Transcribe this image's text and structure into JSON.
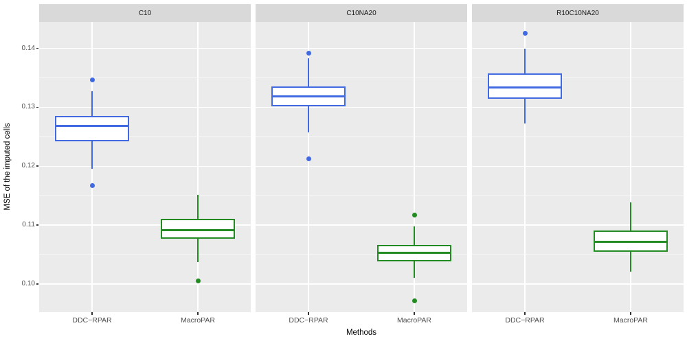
{
  "chart_data": {
    "type": "boxplot",
    "title": "",
    "xlabel": "Methods",
    "ylabel": "MSE of the imputed cells",
    "categories": [
      "DDC−RPAR",
      "MacroPAR"
    ],
    "legend": "none",
    "ylim": [
      0.0952,
      0.1445
    ],
    "yticks": [
      {
        "label": "0.10",
        "value": 0.1
      },
      {
        "label": "0.11",
        "value": 0.11
      },
      {
        "label": "0.12",
        "value": 0.12
      },
      {
        "label": "0.13",
        "value": 0.13
      },
      {
        "label": "0.14",
        "value": 0.14
      }
    ],
    "minor_yticks": [
      0.105,
      0.115,
      0.125,
      0.135
    ],
    "category_positions_pct": [
      25,
      75
    ],
    "box_width_pct": 35,
    "colors": {
      "ddc_rpar": "#4169E1",
      "macropar": "#228B22",
      "panel_bg": "#EBEBEB",
      "strip_bg": "#D9D9D9",
      "gridline": "#FFFFFF",
      "tick_text": "#4D4D4D",
      "axis_text": "#000000"
    },
    "facets": [
      {
        "label": "C10",
        "boxes": [
          {
            "category": "DDC−RPAR",
            "color": "#4169E1",
            "whisker_low": 0.1196,
            "q1": 0.1242,
            "median": 0.1269,
            "q3": 0.1285,
            "whisker_high": 0.1327,
            "outliers": [
              0.1347,
              0.1167
            ]
          },
          {
            "category": "MacroPAR",
            "color": "#228B22",
            "whisker_low": 0.1037,
            "q1": 0.1077,
            "median": 0.1091,
            "q3": 0.111,
            "whisker_high": 0.1151,
            "outliers": [
              0.1005
            ]
          }
        ]
      },
      {
        "label": "C10NA20",
        "boxes": [
          {
            "category": "DDC−RPAR",
            "color": "#4169E1",
            "whisker_low": 0.1257,
            "q1": 0.1302,
            "median": 0.1319,
            "q3": 0.1335,
            "whisker_high": 0.1383,
            "outliers": [
              0.1392,
              0.1213
            ]
          },
          {
            "category": "MacroPAR",
            "color": "#228B22",
            "whisker_low": 0.101,
            "q1": 0.1038,
            "median": 0.1053,
            "q3": 0.1066,
            "whisker_high": 0.1098,
            "outliers": [
              0.1117,
              0.0971
            ]
          }
        ]
      },
      {
        "label": "R10C10NA20",
        "boxes": [
          {
            "category": "DDC−RPAR",
            "color": "#4169E1",
            "whisker_low": 0.1272,
            "q1": 0.1315,
            "median": 0.1334,
            "q3": 0.1358,
            "whisker_high": 0.14,
            "outliers": [
              0.1426
            ]
          },
          {
            "category": "MacroPAR",
            "color": "#228B22",
            "whisker_low": 0.1021,
            "q1": 0.1055,
            "median": 0.1071,
            "q3": 0.1091,
            "whisker_high": 0.1139,
            "outliers": []
          }
        ]
      }
    ]
  }
}
